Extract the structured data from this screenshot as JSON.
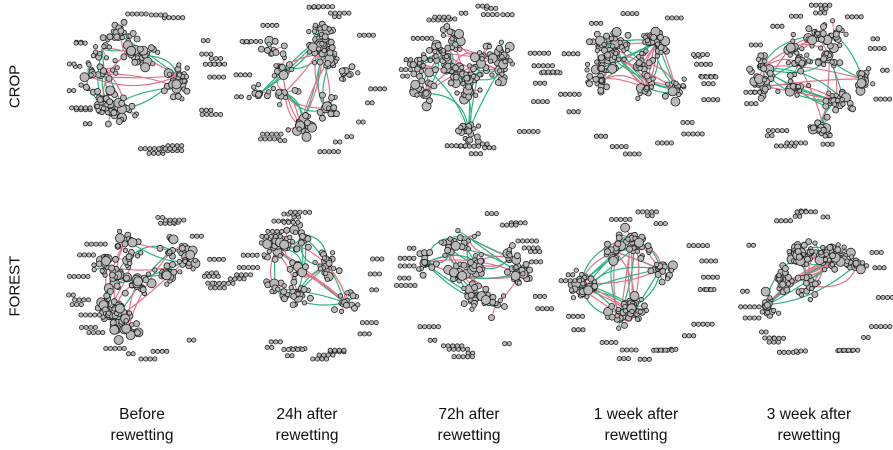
{
  "rows": [
    {
      "label": "CROP"
    },
    {
      "label": "FOREST"
    }
  ],
  "columns": [
    {
      "line1": "Before",
      "line2": "rewetting"
    },
    {
      "line1": "24h after",
      "line2": "rewetting"
    },
    {
      "line1": "72h after",
      "line2": "rewetting"
    },
    {
      "line1": "1 week after",
      "line2": "rewetting"
    },
    {
      "line1": "3 week after",
      "line2": "rewetting"
    }
  ],
  "colors": {
    "positive_edge": "#e8708a",
    "negative_edge": "#2bb57d",
    "node_fill": "#b9b9b9",
    "node_stroke": "#222222"
  }
}
